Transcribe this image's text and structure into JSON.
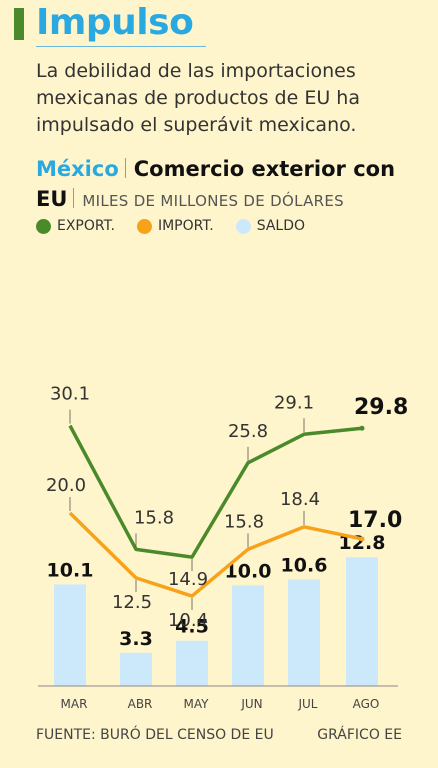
{
  "headline": "Impulso",
  "summary": "La debilidad de las importaciones mexicanas de productos de EU ha impulsado el superávit mexicano.",
  "chart_title": {
    "country": "México",
    "title": "Comercio exterior con EU",
    "unit": "MILES DE MILLONES DE DÓLARES"
  },
  "colors": {
    "export": "#4a8a2a",
    "import": "#f7a21b",
    "saldo": "#cbe9fb",
    "accent": "#2aa8e0"
  },
  "chart_data": {
    "type": "bar",
    "categories": [
      "MAR",
      "ABR",
      "MAY",
      "JUN",
      "JUL",
      "AGO"
    ],
    "series": [
      {
        "name": "EXPORT.",
        "type": "line",
        "values": [
          30.1,
          15.8,
          14.9,
          25.8,
          29.1,
          29.8
        ]
      },
      {
        "name": "IMPORT.",
        "type": "line",
        "values": [
          20.0,
          12.5,
          10.4,
          15.8,
          18.4,
          17.0
        ]
      },
      {
        "name": "SALDO",
        "type": "bar",
        "values": [
          10.1,
          3.3,
          4.5,
          10.0,
          10.6,
          12.8
        ]
      }
    ],
    "value_labels": {
      "export": [
        "30.1",
        "15.8",
        "14.9",
        "25.8",
        "29.1",
        "29.8"
      ],
      "import": [
        "20.0",
        "12.5",
        "10.4",
        "15.8",
        "18.4",
        "17.0"
      ],
      "saldo": [
        "10.1",
        "3.3",
        "4.5",
        "10.0",
        "10.6",
        "12.8"
      ]
    },
    "ylim": [
      0,
      32
    ],
    "grid": false,
    "legend": "top-left"
  },
  "source": "FUENTE: BURÓ DEL CENSO DE EU",
  "credit": "GRÁFICO EE"
}
